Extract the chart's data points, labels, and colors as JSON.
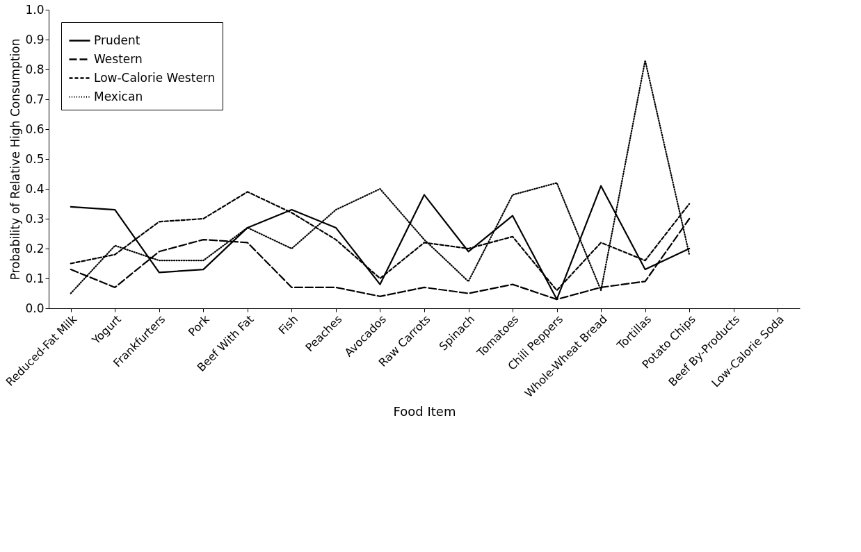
{
  "chart_data": {
    "type": "line",
    "xlabel": "Food Item",
    "ylabel": "Probability of Relative High Consumption",
    "categories": [
      "Reduced-Fat Milk",
      "Yogurt",
      "Frankfurters",
      "Pork",
      "Beef With Fat",
      "Fish",
      "Peaches",
      "Avocados",
      "Raw Carrots",
      "Spinach",
      "Tomatoes",
      "Chili Peppers",
      "Whole-Wheat Bread",
      "Tortillas",
      "Potato Chips",
      "Beef By-Products",
      "Low-Calorie Soda"
    ],
    "series": [
      {
        "name": "Prudent",
        "color": "#000000",
        "line_style": "solid",
        "values": [
          0.34,
          0.33,
          0.12,
          0.13,
          0.27,
          0.33,
          0.27,
          0.08,
          0.38,
          0.19,
          0.31,
          0.03,
          0.41,
          0.13,
          0.2,
          null,
          null
        ]
      },
      {
        "name": "Western",
        "color": "#000000",
        "line_style": "longdash",
        "values": [
          0.13,
          0.07,
          0.19,
          0.23,
          0.22,
          0.07,
          0.07,
          0.04,
          0.07,
          0.05,
          0.08,
          0.03,
          0.07,
          0.09,
          0.3,
          null,
          null
        ]
      },
      {
        "name": "Low-Calorie Western",
        "color": "#000000",
        "line_style": "dashed",
        "values": [
          0.15,
          0.18,
          0.29,
          0.3,
          0.39,
          0.32,
          0.23,
          0.1,
          0.22,
          0.2,
          0.24,
          0.06,
          0.22,
          0.16,
          0.35,
          null,
          null
        ]
      },
      {
        "name": "Mexican",
        "color": "#000000",
        "line_style": "dotted",
        "values": [
          0.05,
          0.21,
          0.16,
          0.16,
          0.27,
          0.2,
          0.33,
          0.4,
          0.23,
          0.09,
          0.38,
          0.42,
          0.06,
          0.83,
          0.18,
          null,
          null
        ]
      }
    ],
    "ylim": [
      0,
      1
    ],
    "yticks": [
      {
        "value": 0,
        "label": "0.0"
      },
      0.1,
      0.2,
      0.3,
      0.4,
      0.5,
      0.6,
      0.7,
      0.8,
      0.9,
      {
        "value": 1,
        "label": "1.0"
      }
    ],
    "grid": false,
    "legend": "top left",
    "marker": "none"
  }
}
